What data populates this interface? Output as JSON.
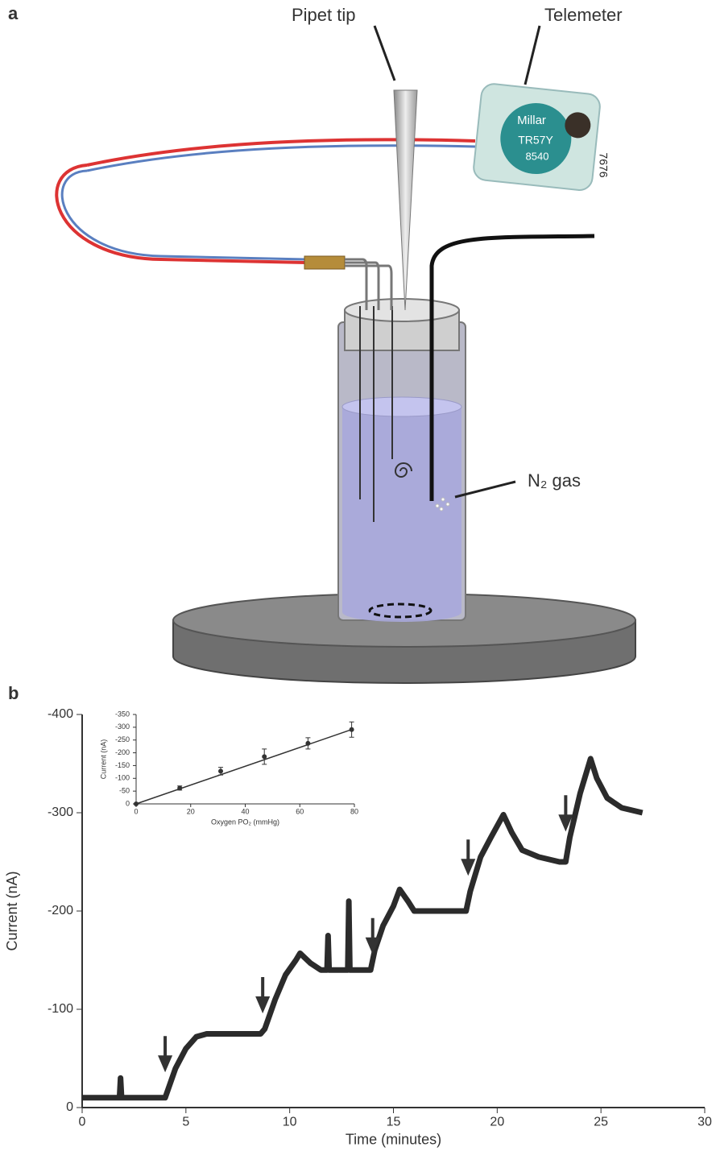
{
  "panel_a": {
    "label": "a",
    "callouts": [
      "Pipet tip",
      "Telemeter",
      "N₂ gas"
    ],
    "device_labels": [
      "Millar",
      "TR57Y",
      "8540",
      "7676"
    ]
  },
  "chart_data": [
    {
      "type": "line",
      "panel_label": "b",
      "x_label": "Time (minutes)",
      "y_label": "Current (nA)",
      "xlim": [
        0,
        30
      ],
      "xticks": [
        0,
        5,
        10,
        15,
        20,
        25,
        30
      ],
      "ylim": [
        0,
        -400
      ],
      "yticks": [
        0,
        -100,
        -200,
        -300,
        -400
      ],
      "x": [
        0,
        1,
        1.8,
        1.85,
        1.9,
        3,
        3.9,
        4.0,
        4.5,
        5,
        5.5,
        6,
        7,
        8,
        8.6,
        8.8,
        9.3,
        9.8,
        10.3,
        10.5,
        11,
        11.5,
        11.8,
        11.85,
        11.9,
        12.5,
        12.8,
        12.85,
        12.9,
        13.5,
        13.9,
        14.1,
        14.5,
        15,
        15.3,
        15.7,
        16,
        17,
        18,
        18.5,
        18.7,
        19.2,
        19.7,
        20.3,
        20.7,
        21.2,
        22,
        23,
        23.3,
        23.5,
        24,
        24.5,
        24.8,
        25.3,
        26,
        27
      ],
      "series": [
        {
          "color": "#2b2b2b",
          "values": [
            -10,
            -10,
            -10,
            -30,
            -10,
            -10,
            -10,
            -10,
            -40,
            -60,
            -72,
            -75,
            -75,
            -75,
            -75,
            -80,
            -110,
            -135,
            -150,
            -157,
            -147,
            -140,
            -140,
            -175,
            -140,
            -140,
            -140,
            -210,
            -140,
            -140,
            -140,
            -160,
            -185,
            -205,
            -222,
            -210,
            -200,
            -200,
            -200,
            -200,
            -220,
            -255,
            -275,
            -298,
            -280,
            -262,
            -255,
            -250,
            -250,
            -275,
            -320,
            -355,
            -335,
            -315,
            -305,
            -300
          ]
        }
      ],
      "arrows": [
        {
          "x": 4,
          "y": -40
        },
        {
          "x": 8.7,
          "y": -100
        },
        {
          "x": 14,
          "y": -160
        },
        {
          "x": 18.6,
          "y": -240
        },
        {
          "x": 23.3,
          "y": -285
        }
      ]
    },
    {
      "type": "scatter",
      "x_label": "Oxygen PO₂ (mmHg)",
      "y_label": "Current (nA)",
      "xlim": [
        0,
        80
      ],
      "xticks": [
        0,
        20,
        40,
        60,
        80
      ],
      "ylim": [
        0,
        -350
      ],
      "yticks": [
        0,
        -50,
        -100,
        -150,
        -200,
        -250,
        -300,
        -350
      ],
      "x": [
        0,
        16,
        31,
        47,
        63,
        79
      ],
      "series": [
        {
          "color": "#333333",
          "values": [
            0,
            -62,
            -128,
            -185,
            -237,
            -291
          ],
          "errors": [
            0,
            8,
            15,
            30,
            22,
            30
          ]
        }
      ],
      "trendline": {
        "x": [
          0,
          79
        ],
        "y": [
          0,
          -291
        ]
      }
    }
  ]
}
